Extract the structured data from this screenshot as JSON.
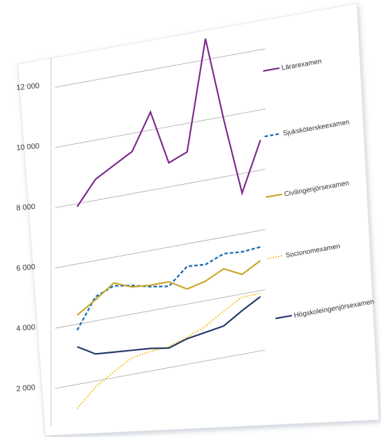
{
  "chart_data": {
    "type": "line",
    "title": "",
    "xlabel": "",
    "ylabel": "",
    "ylim": [
      1000,
      13000
    ],
    "yticks": [
      {
        "value": 2000,
        "label": "2 000"
      },
      {
        "value": 4000,
        "label": "4 000"
      },
      {
        "value": 6000,
        "label": "6 000"
      },
      {
        "value": 8000,
        "label": "8 000"
      },
      {
        "value": 10000,
        "label": "10 000"
      },
      {
        "value": 12000,
        "label": "12 000"
      }
    ],
    "grid": true,
    "legend": "right",
    "x": [
      1,
      2,
      3,
      4,
      5,
      6,
      7,
      8,
      9,
      10,
      11
    ],
    "series": [
      {
        "name": "Lärarexamen",
        "color": "#7b2a8a",
        "dash": "solid",
        "values": [
          7900,
          8700,
          9050,
          9400,
          10600,
          8800,
          9050,
          12700,
          9900,
          7350,
          9000
        ]
      },
      {
        "name": "Sjuksköterskeexamen",
        "color": "#1f6fb4",
        "dash": "dashed",
        "values": [
          3800,
          4800,
          5050,
          4950,
          4800,
          4700,
          5250,
          5200,
          5450,
          5400,
          5450
        ]
      },
      {
        "name": "Civilingenjörsexamen",
        "color": "#c8a82a",
        "dash": "solid",
        "values": [
          4300,
          4700,
          5150,
          4900,
          4850,
          4850,
          4500,
          4650,
          4950,
          4650,
          5000
        ]
      },
      {
        "name": "Socionomexamen",
        "color": "#f5b800",
        "dash": "dotted",
        "values": [
          1200,
          1800,
          2200,
          2550,
          2650,
          2700,
          2900,
          3150,
          3550,
          3900,
          3900
        ]
      },
      {
        "name": "Högskoleingenjörsexamen",
        "color": "#243a6b",
        "dash": "solid",
        "values": [
          3250,
          2900,
          2850,
          2800,
          2750,
          2650,
          2850,
          2950,
          3050,
          3450,
          3800
        ]
      }
    ]
  }
}
